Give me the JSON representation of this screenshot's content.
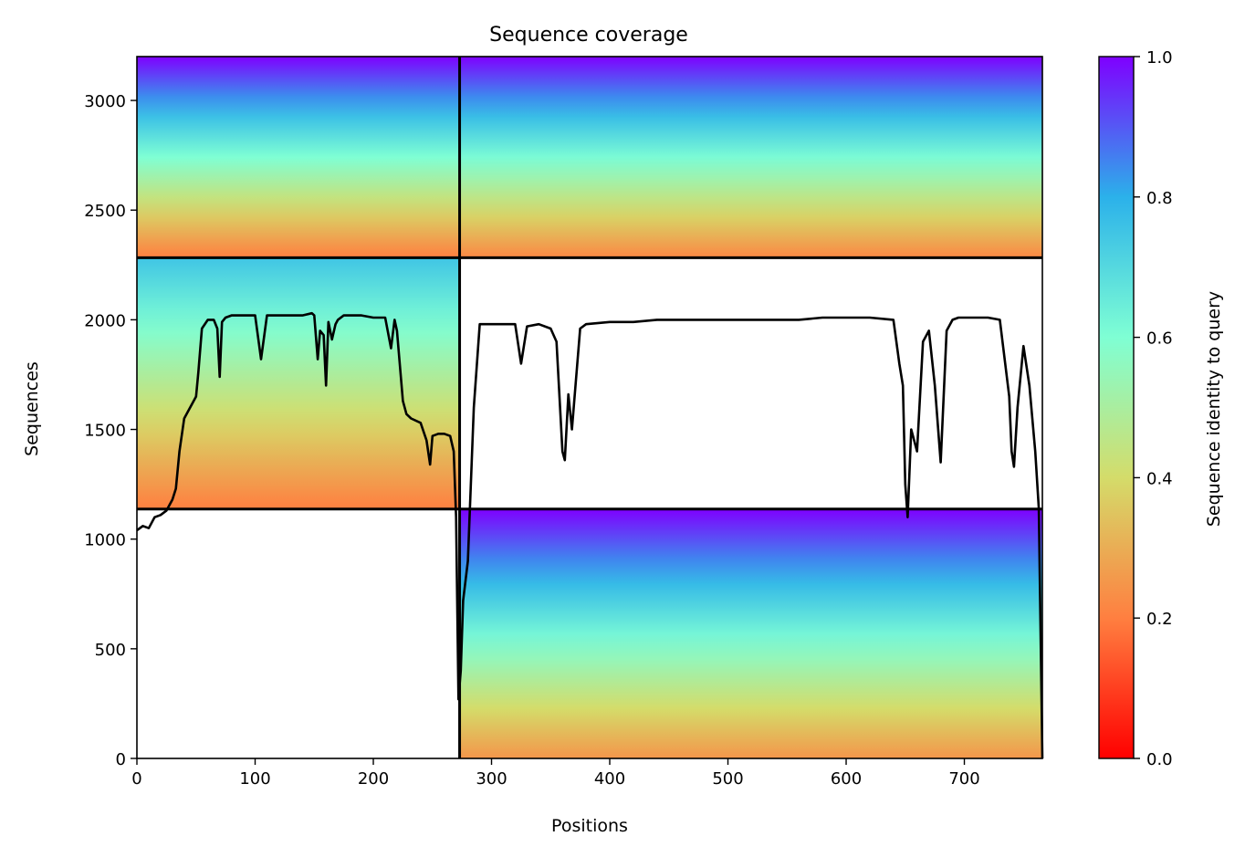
{
  "chart_data": {
    "type": "heatmap",
    "title": "Sequence coverage",
    "xlabel": "Positions",
    "ylabel": "Sequences",
    "xlim": [
      0,
      766
    ],
    "ylim": [
      0,
      3200
    ],
    "xticks": [
      0,
      100,
      200,
      300,
      400,
      500,
      600,
      700
    ],
    "yticks": [
      0,
      500,
      1000,
      1500,
      2000,
      2500,
      3000
    ],
    "grid": false,
    "colormap": "rainbow_r",
    "colorbar": {
      "label": "Sequence identity to query",
      "range": [
        0.0,
        1.0
      ],
      "ticks": [
        "0.0",
        "0.2",
        "0.4",
        "0.6",
        "0.8",
        "1.0"
      ],
      "colors": [
        "#ff0000",
        "#ff7f40",
        "#d4dc6a",
        "#7fffd4",
        "#2bb1ea",
        "#7f00ff"
      ]
    },
    "chain_boundaries": {
      "x": [
        0,
        273,
        766
      ],
      "y": [
        1137,
        2283,
        3200
      ]
    },
    "blocks": [
      {
        "x": [
          0,
          273
        ],
        "y": [
          2283,
          3200
        ],
        "identity_top": 1.0,
        "identity_bottom": 0.2
      },
      {
        "x": [
          273,
          766
        ],
        "y": [
          2283,
          3200
        ],
        "identity_top": 1.0,
        "identity_bottom": 0.22
      },
      {
        "x": [
          0,
          273
        ],
        "y": [
          1137,
          2283
        ],
        "identity_top": 0.75,
        "identity_bottom": 0.2
      },
      {
        "x": [
          273,
          766
        ],
        "y": [
          0,
          1137
        ],
        "identity_top": 1.0,
        "identity_bottom": 0.25
      }
    ],
    "series": [
      {
        "color": "#000000",
        "x": [
          0,
          5,
          10,
          15,
          20,
          25,
          30,
          33,
          36,
          40,
          45,
          50,
          52,
          55,
          60,
          65,
          68,
          70,
          72,
          75,
          80,
          90,
          100,
          105,
          110,
          120,
          130,
          140,
          148,
          150,
          153,
          155,
          158,
          160,
          162,
          165,
          168,
          170,
          175,
          180,
          190,
          200,
          210,
          215,
          218,
          220,
          225,
          228,
          232,
          240,
          245,
          248,
          250,
          255,
          260,
          265,
          268,
          270,
          272,
          274,
          276,
          280,
          285,
          290,
          300,
          310,
          320,
          325,
          330,
          340,
          350,
          355,
          358,
          360,
          362,
          365,
          368,
          375,
          380,
          400,
          420,
          440,
          460,
          480,
          500,
          520,
          540,
          560,
          580,
          600,
          620,
          640,
          645,
          648,
          650,
          652,
          655,
          660,
          665,
          670,
          675,
          680,
          685,
          690,
          695,
          700,
          710,
          720,
          730,
          738,
          740,
          742,
          745,
          750,
          755,
          760,
          763,
          766
        ],
        "y": [
          1040,
          1060,
          1050,
          1100,
          1110,
          1130,
          1180,
          1230,
          1400,
          1550,
          1600,
          1650,
          1760,
          1960,
          2000,
          2000,
          1960,
          1740,
          1990,
          2010,
          2020,
          2020,
          2020,
          1820,
          2020,
          2020,
          2020,
          2020,
          2030,
          2020,
          1820,
          1950,
          1930,
          1700,
          1990,
          1910,
          1980,
          2000,
          2020,
          2020,
          2020,
          2010,
          2010,
          1870,
          2000,
          1950,
          1630,
          1570,
          1550,
          1530,
          1450,
          1340,
          1470,
          1480,
          1480,
          1470,
          1400,
          1100,
          270,
          400,
          720,
          900,
          1600,
          1980,
          1980,
          1980,
          1980,
          1800,
          1970,
          1980,
          1960,
          1900,
          1600,
          1400,
          1360,
          1660,
          1500,
          1960,
          1980,
          1990,
          1990,
          2000,
          2000,
          2000,
          2000,
          2000,
          2000,
          2000,
          2010,
          2010,
          2010,
          2000,
          1800,
          1700,
          1250,
          1100,
          1500,
          1400,
          1900,
          1950,
          1700,
          1350,
          1950,
          2000,
          2010,
          2010,
          2010,
          2010,
          2000,
          1650,
          1400,
          1330,
          1600,
          1880,
          1700,
          1400,
          1140,
          0
        ]
      }
    ]
  }
}
